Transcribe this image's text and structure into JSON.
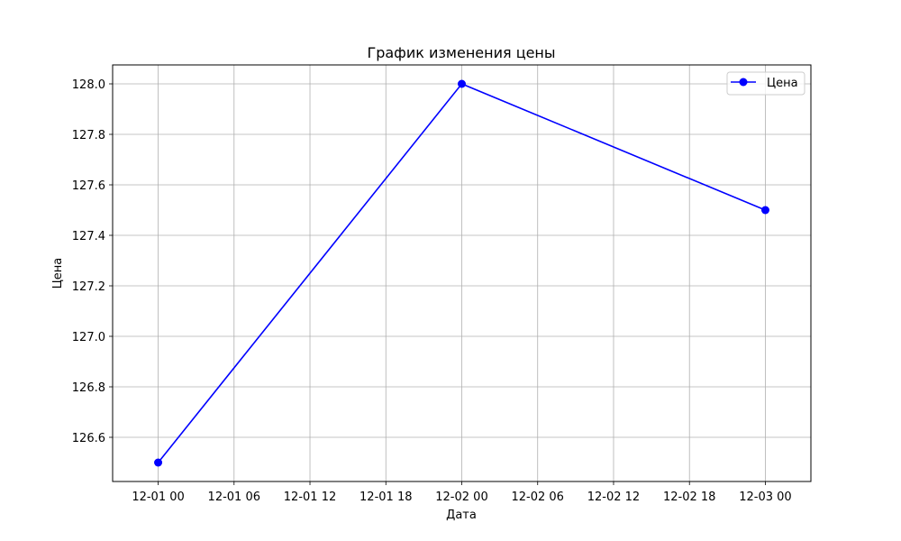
{
  "chart_data": {
    "type": "line",
    "title": "График изменения цены",
    "xlabel": "Дата",
    "ylabel": "Цена",
    "x_axis_type": "datetime",
    "x": [
      "2023-12-01 00:00",
      "2023-12-02 00:00",
      "2023-12-03 00:00"
    ],
    "xlim": [
      "2023-11-30 20:24",
      "2023-12-03 03:36"
    ],
    "xticks": [
      "12-01 00",
      "12-01 06",
      "12-01 12",
      "12-01 18",
      "12-02 00",
      "12-02 06",
      "12-02 12",
      "12-02 18",
      "12-03 00"
    ],
    "ylim": [
      126.425,
      128.075
    ],
    "yticks": [
      "126.6",
      "126.8",
      "127.0",
      "127.2",
      "127.4",
      "127.6",
      "127.8",
      "128.0"
    ],
    "grid": true,
    "legend": "top-right",
    "series": [
      {
        "name": "Цена",
        "values": [
          126.5,
          128.0,
          127.5
        ],
        "color": "#0000ff",
        "marker": "circle"
      }
    ]
  }
}
